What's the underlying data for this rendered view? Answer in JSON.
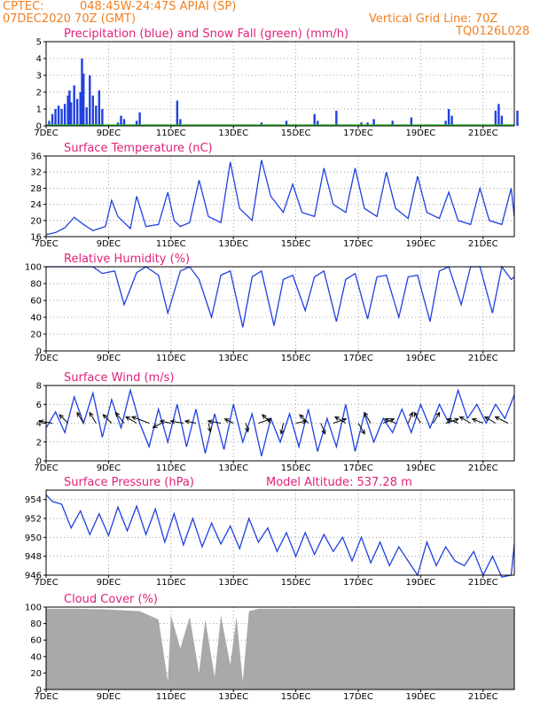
{
  "header": {
    "source": "CPTEC:",
    "location": "048:45W-24:47S  APIAI (SP)",
    "init_time": "07DEC2020 70Z (GMT)",
    "grid_note": "Vertical Grid Line: 70Z",
    "model_id": "TQ0126L028"
  },
  "chart_data": [
    {
      "id": "precip",
      "type": "bar",
      "title": "Precipitation (blue) and Snow Fall (green) (mm/h)",
      "x_ticks": [
        "7DEC",
        "9DEC",
        "11DEC",
        "13DEC",
        "15DEC",
        "17DEC",
        "19DEC",
        "21DEC"
      ],
      "ylim": [
        0,
        5
      ],
      "y_ticks": [
        0,
        1,
        2,
        3,
        4,
        5
      ],
      "x_range_days": [
        7,
        22
      ],
      "series": [
        {
          "color": "#2040e0",
          "values_by_day": [
            [
              7.1,
              0.3
            ],
            [
              7.2,
              0.7
            ],
            [
              7.3,
              1.0
            ],
            [
              7.4,
              1.2
            ],
            [
              7.5,
              1.0
            ],
            [
              7.6,
              1.3
            ],
            [
              7.7,
              1.8
            ],
            [
              7.75,
              2.1
            ],
            [
              7.8,
              1.4
            ],
            [
              7.9,
              2.4
            ],
            [
              8.0,
              1.6
            ],
            [
              8.1,
              2.0
            ],
            [
              8.15,
              4.0
            ],
            [
              8.2,
              3.1
            ],
            [
              8.3,
              1.1
            ],
            [
              8.4,
              3.0
            ],
            [
              8.5,
              1.8
            ],
            [
              8.6,
              1.2
            ],
            [
              8.7,
              2.1
            ],
            [
              8.8,
              1.0
            ],
            [
              9.3,
              0.2
            ],
            [
              9.4,
              0.6
            ],
            [
              9.5,
              0.4
            ],
            [
              9.9,
              0.3
            ],
            [
              10.0,
              0.8
            ],
            [
              11.2,
              1.5
            ],
            [
              11.3,
              0.4
            ],
            [
              13.9,
              0.2
            ],
            [
              14.7,
              0.3
            ],
            [
              15.6,
              0.7
            ],
            [
              15.7,
              0.3
            ],
            [
              16.3,
              0.9
            ],
            [
              17.1,
              0.2
            ],
            [
              17.3,
              0.2
            ],
            [
              17.5,
              0.4
            ],
            [
              18.1,
              0.3
            ],
            [
              18.7,
              0.5
            ],
            [
              19.9,
              1.0
            ],
            [
              20.0,
              0.6
            ],
            [
              19.8,
              0.3
            ],
            [
              21.4,
              0.9
            ],
            [
              21.5,
              1.3
            ],
            [
              21.6,
              0.6
            ],
            [
              22.1,
              0.9
            ]
          ]
        },
        {
          "color": "#20c020",
          "values_by_day": []
        }
      ]
    },
    {
      "id": "temp",
      "type": "line",
      "title": "Surface Temperature (nC)",
      "x_ticks": [
        "7DEC",
        "9DEC",
        "11DEC",
        "13DEC",
        "15DEC",
        "17DEC",
        "19DEC",
        "21DEC"
      ],
      "ylim": [
        16,
        36
      ],
      "y_ticks": [
        16,
        20,
        24,
        28,
        32,
        36
      ],
      "series": [
        {
          "color": "#2040e0",
          "x": [
            7.0,
            7.3,
            7.6,
            7.9,
            8.2,
            8.5,
            8.9,
            9.1,
            9.3,
            9.7,
            9.9,
            10.2,
            10.6,
            10.9,
            11.1,
            11.3,
            11.6,
            11.9,
            12.2,
            12.6,
            12.9,
            13.2,
            13.6,
            13.9,
            14.2,
            14.6,
            14.9,
            15.2,
            15.6,
            15.9,
            16.2,
            16.6,
            16.9,
            17.2,
            17.6,
            17.9,
            18.2,
            18.6,
            18.9,
            19.2,
            19.6,
            19.9,
            20.2,
            20.6,
            20.9,
            21.2,
            21.6,
            21.9,
            22.0
          ],
          "y": [
            16.5,
            17,
            18.2,
            20.8,
            19,
            17.5,
            18.5,
            25,
            21,
            18,
            26,
            18.5,
            19,
            27,
            20,
            18.5,
            19.5,
            30,
            21,
            19.5,
            34.5,
            23,
            20,
            35,
            26,
            22,
            29,
            22,
            21,
            33,
            24,
            22,
            33,
            23,
            21,
            32,
            23,
            20.5,
            31,
            22,
            20.5,
            27,
            20,
            19,
            28,
            20,
            19,
            28,
            21
          ]
        }
      ]
    },
    {
      "id": "rh",
      "type": "line",
      "title": "Relative Humidity (%)",
      "x_ticks": [
        "7DEC",
        "9DEC",
        "11DEC",
        "13DEC",
        "15DEC",
        "17DEC",
        "19DEC",
        "21DEC"
      ],
      "ylim": [
        0,
        100
      ],
      "y_ticks": [
        0,
        20,
        40,
        60,
        80,
        100
      ],
      "series": [
        {
          "color": "#2040e0",
          "x": [
            7.0,
            7.5,
            8.0,
            8.5,
            8.8,
            9.2,
            9.5,
            9.9,
            10.2,
            10.6,
            10.9,
            11.3,
            11.6,
            11.9,
            12.3,
            12.6,
            12.9,
            13.3,
            13.6,
            13.9,
            14.3,
            14.6,
            14.9,
            15.3,
            15.6,
            15.9,
            16.3,
            16.6,
            16.9,
            17.3,
            17.6,
            17.9,
            18.3,
            18.6,
            18.9,
            19.3,
            19.6,
            19.9,
            20.3,
            20.6,
            20.9,
            21.3,
            21.6,
            21.9,
            22.0
          ],
          "y": [
            100,
            100,
            100,
            100,
            92,
            95,
            55,
            93,
            100,
            90,
            45,
            95,
            100,
            85,
            40,
            90,
            95,
            28,
            88,
            95,
            30,
            85,
            90,
            48,
            88,
            95,
            35,
            85,
            92,
            38,
            88,
            90,
            40,
            88,
            90,
            35,
            95,
            100,
            55,
            100,
            100,
            45,
            100,
            85,
            88
          ]
        }
      ]
    },
    {
      "id": "wind",
      "type": "line",
      "title": "Surface Wind (m/s)",
      "x_ticks": [
        "7DEC",
        "9DEC",
        "11DEC",
        "13DEC",
        "15DEC",
        "17DEC",
        "19DEC",
        "21DEC"
      ],
      "ylim": [
        0,
        8
      ],
      "y_ticks": [
        0,
        2,
        4,
        6,
        8
      ],
      "series": [
        {
          "color": "#2040e0",
          "x": [
            7.0,
            7.3,
            7.6,
            7.9,
            8.2,
            8.5,
            8.8,
            9.1,
            9.4,
            9.7,
            10.0,
            10.3,
            10.6,
            10.9,
            11.2,
            11.5,
            11.8,
            12.1,
            12.4,
            12.7,
            13.0,
            13.3,
            13.6,
            13.9,
            14.2,
            14.5,
            14.8,
            15.1,
            15.4,
            15.7,
            16.0,
            16.3,
            16.6,
            16.9,
            17.2,
            17.5,
            17.8,
            18.1,
            18.4,
            18.7,
            19.0,
            19.3,
            19.6,
            19.9,
            20.2,
            20.5,
            20.8,
            21.1,
            21.4,
            21.7,
            22.0
          ],
          "y": [
            3.5,
            5.2,
            3,
            6.8,
            4,
            7.2,
            2.5,
            6.5,
            3.5,
            7.5,
            4,
            1.5,
            5.5,
            2,
            6,
            1.5,
            5.5,
            0.8,
            5,
            1.2,
            6,
            2,
            5,
            0.5,
            4.5,
            2,
            5,
            1.5,
            5.5,
            1,
            4.5,
            1.5,
            6,
            1,
            5,
            2,
            4.5,
            3,
            5.5,
            3,
            6,
            3.5,
            6,
            4,
            7.5,
            4.5,
            6,
            4,
            6,
            4.5,
            7
          ]
        }
      ],
      "vectors": [
        [
          7.2,
          -0.6,
          0.1
        ],
        [
          7.7,
          -0.4,
          0.4
        ],
        [
          8.2,
          -0.3,
          0.5
        ],
        [
          8.6,
          -0.3,
          0.5
        ],
        [
          9.1,
          -0.4,
          0.4
        ],
        [
          9.5,
          -0.4,
          0.5
        ],
        [
          9.9,
          -0.5,
          0.3
        ],
        [
          10.3,
          -0.8,
          0.3
        ],
        [
          10.7,
          -0.4,
          -0.2
        ],
        [
          11.0,
          -0.5,
          0.1
        ],
        [
          11.4,
          -0.6,
          0.1
        ],
        [
          11.8,
          -0.5,
          0.1
        ],
        [
          12.2,
          0.1,
          -0.4
        ],
        [
          12.6,
          -0.6,
          0.1
        ],
        [
          13.0,
          -0.4,
          0.2
        ],
        [
          13.4,
          0.1,
          -0.4
        ],
        [
          13.8,
          0.6,
          0.2
        ],
        [
          14.2,
          -0.4,
          0.4
        ],
        [
          14.6,
          -0.1,
          -0.5
        ],
        [
          15.0,
          0.5,
          0.1
        ],
        [
          15.4,
          -0.4,
          0.4
        ],
        [
          15.8,
          0.2,
          -0.5
        ],
        [
          16.2,
          0.6,
          0.2
        ],
        [
          16.6,
          -0.5,
          0.3
        ],
        [
          17.0,
          0.3,
          -0.5
        ],
        [
          17.4,
          -0.3,
          0.5
        ],
        [
          17.8,
          0.5,
          0.2
        ],
        [
          18.2,
          -0.5,
          0.2
        ],
        [
          18.6,
          0.2,
          0.5
        ],
        [
          19.0,
          -0.3,
          0.5
        ],
        [
          19.4,
          0.3,
          0.5
        ],
        [
          19.8,
          0.6,
          0.2
        ],
        [
          20.2,
          -0.5,
          0.2
        ],
        [
          20.6,
          -0.5,
          0.3
        ],
        [
          21.0,
          -0.5,
          0.2
        ],
        [
          21.4,
          -0.5,
          0.3
        ],
        [
          21.8,
          -0.6,
          0.3
        ]
      ]
    },
    {
      "id": "press",
      "type": "line",
      "title": "Surface Pressure (hPa)",
      "subtitle": "Model Altitude: 537.28 m",
      "x_ticks": [
        "7DEC",
        "9DEC",
        "11DEC",
        "13DEC",
        "15DEC",
        "17DEC",
        "19DEC",
        "21DEC"
      ],
      "ylim": [
        946,
        955
      ],
      "y_ticks": [
        946,
        948,
        950,
        952,
        954
      ],
      "series": [
        {
          "color": "#2040e0",
          "x": [
            7.0,
            7.2,
            7.5,
            7.8,
            8.1,
            8.4,
            8.7,
            9.0,
            9.3,
            9.6,
            9.9,
            10.2,
            10.5,
            10.8,
            11.1,
            11.4,
            11.7,
            12.0,
            12.3,
            12.6,
            12.9,
            13.2,
            13.5,
            13.8,
            14.1,
            14.4,
            14.7,
            15.0,
            15.3,
            15.6,
            15.9,
            16.2,
            16.5,
            16.8,
            17.1,
            17.4,
            17.7,
            18.0,
            18.3,
            18.6,
            18.9,
            19.2,
            19.5,
            19.8,
            20.1,
            20.4,
            20.7,
            21.0,
            21.3,
            21.6,
            21.9,
            22.0
          ],
          "y": [
            954.5,
            953.8,
            953.5,
            951,
            952.8,
            950.3,
            952.5,
            950.2,
            953.2,
            950.7,
            953.3,
            950.3,
            953,
            949.5,
            952.5,
            949.2,
            952,
            949,
            951.5,
            949.3,
            951.2,
            948.8,
            952,
            949.5,
            951,
            948.5,
            950.5,
            948,
            950.5,
            948.2,
            950.3,
            948.5,
            950,
            947.5,
            950,
            947.3,
            949.5,
            947,
            949,
            947.5,
            946,
            949.5,
            947,
            949,
            947.5,
            947,
            948.5,
            946,
            948,
            945.8,
            946,
            949.3
          ]
        }
      ]
    },
    {
      "id": "cloud",
      "type": "area",
      "title": "Cloud Cover (%)",
      "x_ticks": [
        "7DEC",
        "9DEC",
        "11DEC",
        "13DEC",
        "15DEC",
        "17DEC",
        "19DEC",
        "21DEC"
      ],
      "ylim": [
        0,
        100
      ],
      "y_ticks": [
        0,
        20,
        40,
        60,
        80,
        100
      ],
      "series": [
        {
          "color": "#a9a9a9",
          "x": [
            7.0,
            8.0,
            9.0,
            10.0,
            10.6,
            10.9,
            11.0,
            11.3,
            11.6,
            11.9,
            12.1,
            12.4,
            12.6,
            12.9,
            13.1,
            13.3,
            13.5,
            13.8,
            14.0,
            15.0,
            16.0,
            17.0,
            18.0,
            19.0,
            20.0,
            21.0,
            22.0
          ],
          "y": [
            98,
            98,
            97,
            95,
            85,
            10,
            90,
            50,
            88,
            20,
            85,
            15,
            90,
            30,
            88,
            10,
            95,
            98,
            98,
            98,
            98,
            98,
            98,
            98,
            98,
            98,
            98
          ]
        }
      ]
    }
  ]
}
